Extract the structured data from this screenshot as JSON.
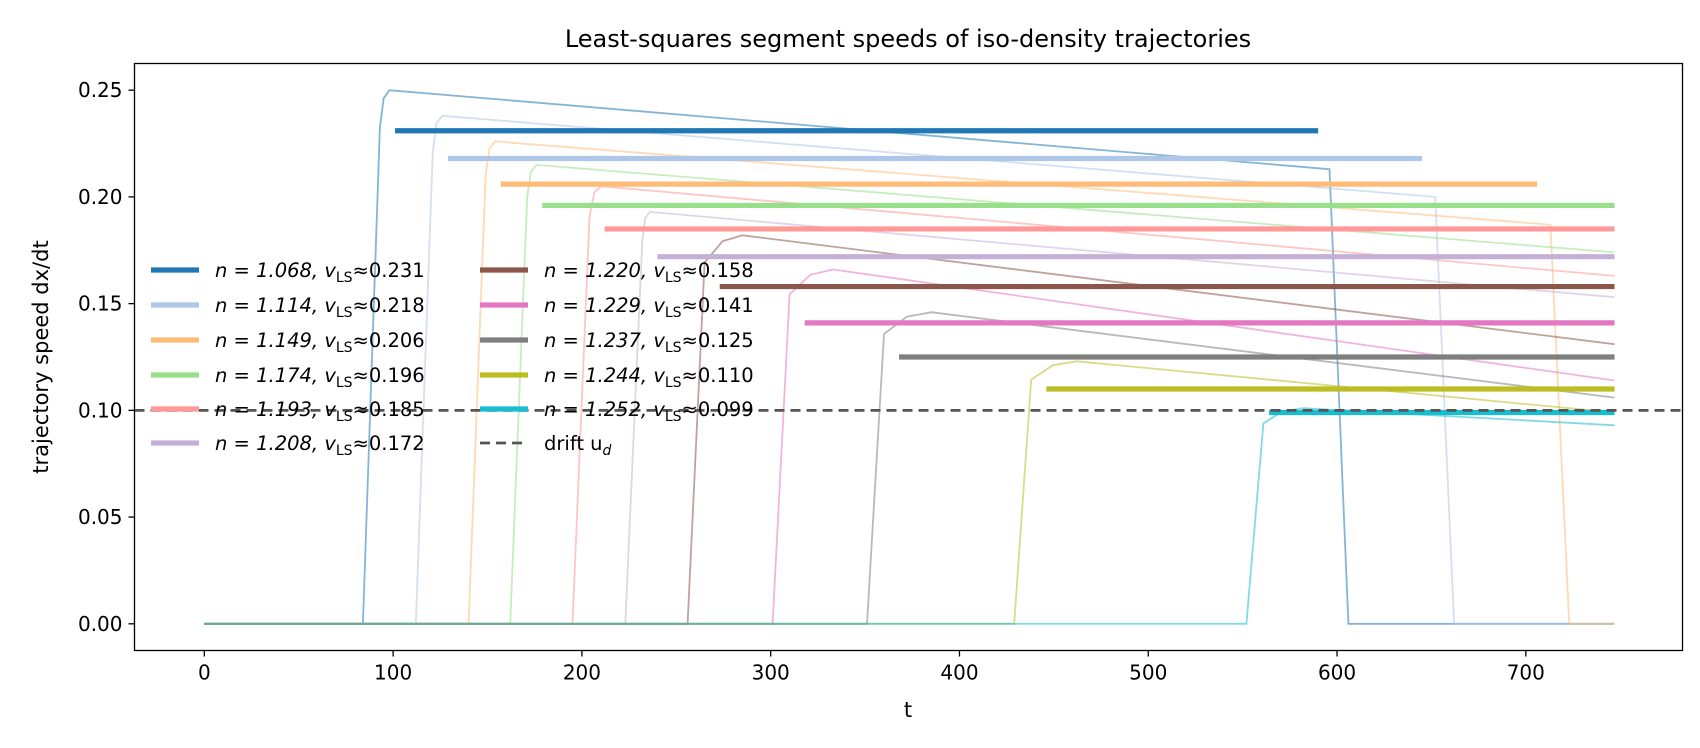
{
  "chart_data": {
    "type": "line",
    "title": "Least-squares segment speeds of iso-density trajectories",
    "xlabel": "t",
    "ylabel": "trajectory speed  dx/dt",
    "xlim": [
      -37,
      783
    ],
    "ylim": [
      -0.0125,
      0.2625
    ],
    "xticks": [
      0,
      100,
      200,
      300,
      400,
      500,
      600,
      700
    ],
    "yticks": [
      0.0,
      0.05,
      0.1,
      0.15,
      0.2,
      0.25
    ],
    "xtick_labels": [
      "0",
      "100",
      "200",
      "300",
      "400",
      "500",
      "600",
      "700"
    ],
    "ytick_labels": [
      "0.00",
      "0.05",
      "0.10",
      "0.15",
      "0.20",
      "0.25"
    ],
    "grid": false,
    "legend_position": "center-left",
    "drift": {
      "value": 0.1,
      "label": "drift u",
      "subscript": "d"
    },
    "series": [
      {
        "n": "1.068",
        "v": "0.231",
        "color": "#1f77b4",
        "seg_start": 101,
        "seg_end": 590,
        "rise": 84,
        "peak_t": 98,
        "peak": 0.25,
        "end_t": 596,
        "end_v": 0.213,
        "drop_end": 606,
        "label_prefix": "n = 1.068, v",
        "label_sub": "LS",
        "label_suffix": "≈0.231"
      },
      {
        "n": "1.114",
        "v": "0.218",
        "color": "#aec7e8",
        "seg_start": 129,
        "seg_end": 645,
        "rise": 112,
        "peak_t": 126,
        "peak": 0.238,
        "end_t": 652,
        "end_v": 0.2,
        "drop_end": 662,
        "label_prefix": "n = 1.114, v",
        "label_sub": "LS",
        "label_suffix": "≈0.218"
      },
      {
        "n": "1.149",
        "v": "0.206",
        "color": "#ffbb78",
        "seg_start": 157,
        "seg_end": 706,
        "rise": 140,
        "peak_t": 154,
        "peak": 0.226,
        "end_t": 713,
        "end_v": 0.187,
        "drop_end": 723,
        "label_prefix": "n = 1.149, v",
        "label_sub": "LS",
        "label_suffix": "≈0.206"
      },
      {
        "n": "1.174",
        "v": "0.196",
        "color": "#98df8a",
        "seg_start": 179,
        "seg_end": 747,
        "rise": 162,
        "peak_t": 176,
        "peak": 0.215,
        "end_t": 747,
        "end_v": 0.174,
        "drop_end": null,
        "label_prefix": "n = 1.174, v",
        "label_sub": "LS",
        "label_suffix": "≈0.196"
      },
      {
        "n": "1.193",
        "v": "0.185",
        "color": "#ff9896",
        "seg_start": 212,
        "seg_end": 747,
        "rise": 195,
        "peak_t": 210,
        "peak": 0.205,
        "end_t": 747,
        "end_v": 0.163,
        "drop_end": null,
        "label_prefix": "n = 1.193, v",
        "label_sub": "LS",
        "label_suffix": "≈0.185"
      },
      {
        "n": "1.208",
        "v": "0.172",
        "color": "#c5b0d5",
        "seg_start": 240,
        "seg_end": 747,
        "rise": 223,
        "peak_t": 236,
        "peak": 0.193,
        "end_t": 747,
        "end_v": 0.153,
        "drop_end": null,
        "label_prefix": "n = 1.208, v",
        "label_sub": "LS",
        "label_suffix": "≈0.172"
      },
      {
        "n": "1.220",
        "v": "0.158",
        "color": "#8c564b",
        "seg_start": 273,
        "seg_end": 747,
        "rise": 256,
        "peak_t": 285,
        "peak": 0.182,
        "end_t": 747,
        "end_v": 0.131,
        "drop_end": null,
        "label_prefix": "n = 1.220, v",
        "label_sub": "LS",
        "label_suffix": "≈0.158"
      },
      {
        "n": "1.229",
        "v": "0.141",
        "color": "#e377c2",
        "seg_start": 318,
        "seg_end": 747,
        "rise": 301,
        "peak_t": 333,
        "peak": 0.166,
        "end_t": 747,
        "end_v": 0.114,
        "drop_end": null,
        "label_prefix": "n = 1.229, v",
        "label_sub": "LS",
        "label_suffix": "≈0.141"
      },
      {
        "n": "1.237",
        "v": "0.125",
        "color": "#7f7f7f",
        "seg_start": 368,
        "seg_end": 747,
        "rise": 351,
        "peak_t": 385,
        "peak": 0.146,
        "end_t": 747,
        "end_v": 0.106,
        "drop_end": null,
        "label_prefix": "n = 1.237, v",
        "label_sub": "LS",
        "label_suffix": "≈0.125"
      },
      {
        "n": "1.244",
        "v": "0.110",
        "color": "#bcbd22",
        "seg_start": 446,
        "seg_end": 747,
        "rise": 429,
        "peak_t": 462,
        "peak": 0.123,
        "end_t": 747,
        "end_v": 0.099,
        "drop_end": null,
        "label_prefix": "n = 1.244, v",
        "label_sub": "LS",
        "label_suffix": "≈0.110"
      },
      {
        "n": "1.252",
        "v": "0.099",
        "color": "#17becf",
        "seg_start": 564,
        "seg_end": 747,
        "rise": 552,
        "peak_t": 582,
        "peak": 0.101,
        "end_t": 747,
        "end_v": 0.093,
        "drop_end": null,
        "label_prefix": "n = 1.252, v",
        "label_sub": "LS",
        "label_suffix": "≈0.099"
      }
    ]
  }
}
